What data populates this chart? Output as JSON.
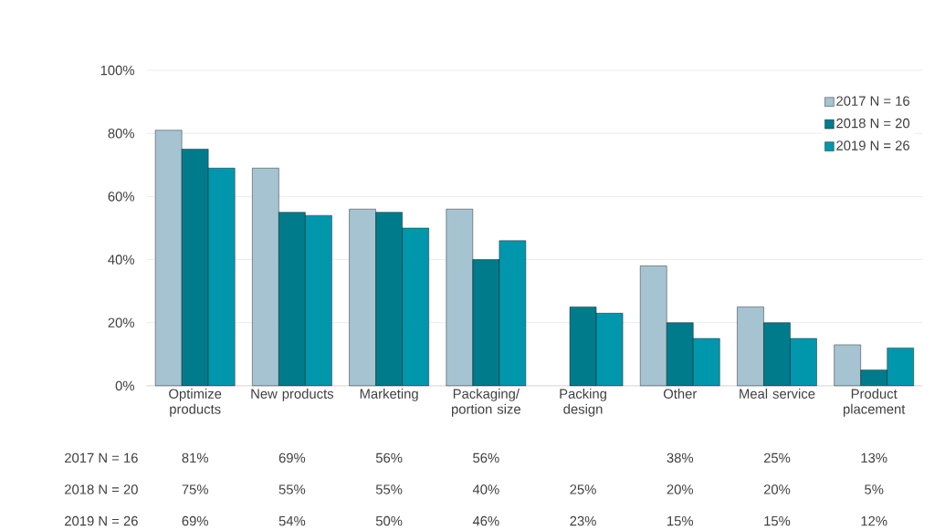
{
  "chart_data": {
    "type": "bar",
    "categories": [
      "Optimize products",
      "New products",
      "Marketing",
      "Packaging/ portion size",
      "Packing design",
      "Other",
      "Meal service",
      "Product placement"
    ],
    "series": [
      {
        "name": "2017 N = 16",
        "color": "#a5c3d1",
        "values": [
          81,
          69,
          56,
          56,
          null,
          38,
          25,
          13
        ],
        "value_labels": [
          "81%",
          "69%",
          "56%",
          "56%",
          null,
          "38%",
          "25%",
          "13%"
        ]
      },
      {
        "name": "2018 N = 20",
        "color": "#007b8c",
        "values": [
          75,
          55,
          55,
          40,
          25,
          20,
          20,
          5
        ],
        "value_labels": [
          "75%",
          "55%",
          "55%",
          "40%",
          "25%",
          "20%",
          "20%",
          "5%"
        ]
      },
      {
        "name": "2019 N = 26",
        "color": "#0097ad",
        "values": [
          69,
          54,
          50,
          46,
          23,
          15,
          15,
          12
        ],
        "value_labels": [
          "69%",
          "54%",
          "50%",
          "46%",
          "23%",
          "15%",
          "15%",
          "12%"
        ]
      }
    ],
    "ylim": [
      0,
      100
    ],
    "yticks": [
      {
        "value": 0,
        "label": "0%"
      },
      {
        "value": 20,
        "label": "20%"
      },
      {
        "value": 40,
        "label": "40%"
      },
      {
        "value": 60,
        "label": "60%"
      },
      {
        "value": 80,
        "label": "80%"
      },
      {
        "value": 100,
        "label": "100%"
      }
    ],
    "grid": "y",
    "legend": "top right"
  }
}
